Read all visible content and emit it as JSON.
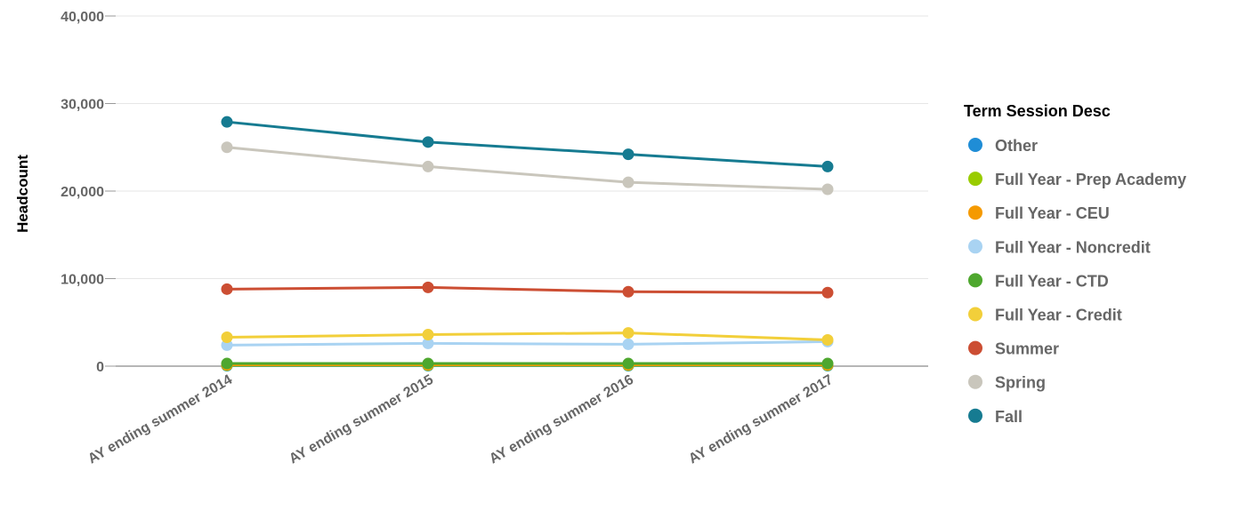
{
  "chart_data": {
    "type": "line",
    "title": "",
    "xlabel": "",
    "ylabel": "Headcount",
    "ylim": [
      0,
      40000
    ],
    "yticks": [
      0,
      10000,
      20000,
      30000,
      40000
    ],
    "ytick_labels": [
      "0",
      "10,000",
      "20,000",
      "30,000",
      "40,000"
    ],
    "categories": [
      "AY ending summer 2014",
      "AY ending summer 2015",
      "AY ending summer 2016",
      "AY ending summer 2017"
    ],
    "grid": true,
    "legend": {
      "title": "Term Session Desc",
      "placement": "right"
    },
    "series": [
      {
        "name": "Other",
        "color": "#1f8dd6",
        "values": [
          50,
          50,
          50,
          50
        ]
      },
      {
        "name": "Full Year - Prep Academy",
        "color": "#99cc00",
        "values": [
          100,
          100,
          100,
          100
        ]
      },
      {
        "name": "Full Year - CEU",
        "color": "#f59a00",
        "values": [
          150,
          150,
          150,
          150
        ]
      },
      {
        "name": "Full Year - Noncredit",
        "color": "#a9d3f2",
        "values": [
          2400,
          2600,
          2500,
          2800
        ]
      },
      {
        "name": "Full Year - CTD",
        "color": "#4ea72e",
        "values": [
          300,
          300,
          300,
          300
        ]
      },
      {
        "name": "Full Year - Credit",
        "color": "#f2cf3a",
        "values": [
          3300,
          3600,
          3800,
          3000
        ]
      },
      {
        "name": "Summer",
        "color": "#cc4e33",
        "values": [
          8800,
          9000,
          8500,
          8400
        ]
      },
      {
        "name": "Spring",
        "color": "#c9c6bc",
        "values": [
          25000,
          22800,
          21000,
          20200
        ]
      },
      {
        "name": "Fall",
        "color": "#167b91",
        "values": [
          27900,
          25600,
          24200,
          22800
        ]
      }
    ]
  }
}
